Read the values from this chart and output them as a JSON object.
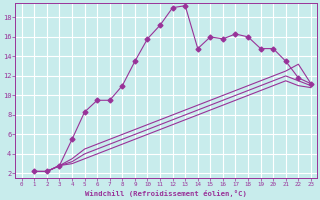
{
  "title": "",
  "xlabel": "Windchill (Refroidissement éolien,°C)",
  "ylabel": "",
  "bg_color": "#c8ecec",
  "line_color": "#993399",
  "xlim": [
    -0.5,
    23.5
  ],
  "ylim": [
    1.5,
    19.5
  ],
  "xticks": [
    0,
    1,
    2,
    3,
    4,
    5,
    6,
    7,
    8,
    9,
    10,
    11,
    12,
    13,
    14,
    15,
    16,
    17,
    18,
    19,
    20,
    21,
    22,
    23
  ],
  "yticks": [
    2,
    4,
    6,
    8,
    10,
    12,
    14,
    16,
    18
  ],
  "grid_color": "#ffffff",
  "series": [
    {
      "x": [
        1,
        2,
        3,
        4,
        5,
        6,
        7,
        8,
        9,
        10,
        11,
        12,
        13,
        14,
        15,
        16,
        17,
        18,
        19,
        20,
        21,
        22,
        23
      ],
      "y": [
        2.2,
        2.2,
        2.8,
        5.5,
        8.3,
        9.5,
        9.5,
        11.0,
        13.5,
        15.8,
        17.2,
        19.0,
        19.2,
        14.8,
        16.0,
        15.8,
        16.3,
        16.0,
        14.8,
        14.8,
        13.5,
        11.8,
        11.2
      ],
      "marker": "D",
      "markersize": 2.5
    },
    {
      "x": [
        1,
        2,
        3,
        4,
        5,
        6,
        7,
        8,
        9,
        10,
        11,
        12,
        13,
        14,
        15,
        16,
        17,
        18,
        19,
        20,
        21,
        22,
        23
      ],
      "y": [
        2.2,
        2.2,
        2.8,
        3.5,
        4.5,
        5.0,
        5.5,
        6.0,
        6.5,
        7.0,
        7.5,
        8.0,
        8.5,
        9.0,
        9.5,
        10.0,
        10.5,
        11.0,
        11.5,
        12.0,
        12.5,
        13.2,
        11.2
      ],
      "marker": null,
      "markersize": 0
    },
    {
      "x": [
        1,
        2,
        3,
        4,
        5,
        6,
        7,
        8,
        9,
        10,
        11,
        12,
        13,
        14,
        15,
        16,
        17,
        18,
        19,
        20,
        21,
        22,
        23
      ],
      "y": [
        2.2,
        2.2,
        2.8,
        3.2,
        4.0,
        4.5,
        5.0,
        5.5,
        6.0,
        6.5,
        7.0,
        7.5,
        8.0,
        8.5,
        9.0,
        9.5,
        10.0,
        10.5,
        11.0,
        11.5,
        12.0,
        11.5,
        11.0
      ],
      "marker": null,
      "markersize": 0
    },
    {
      "x": [
        1,
        2,
        3,
        4,
        5,
        6,
        7,
        8,
        9,
        10,
        11,
        12,
        13,
        14,
        15,
        16,
        17,
        18,
        19,
        20,
        21,
        22,
        23
      ],
      "y": [
        2.2,
        2.2,
        2.8,
        3.0,
        3.5,
        4.0,
        4.5,
        5.0,
        5.5,
        6.0,
        6.5,
        7.0,
        7.5,
        8.0,
        8.5,
        9.0,
        9.5,
        10.0,
        10.5,
        11.0,
        11.5,
        11.0,
        10.8
      ],
      "marker": null,
      "markersize": 0
    }
  ]
}
